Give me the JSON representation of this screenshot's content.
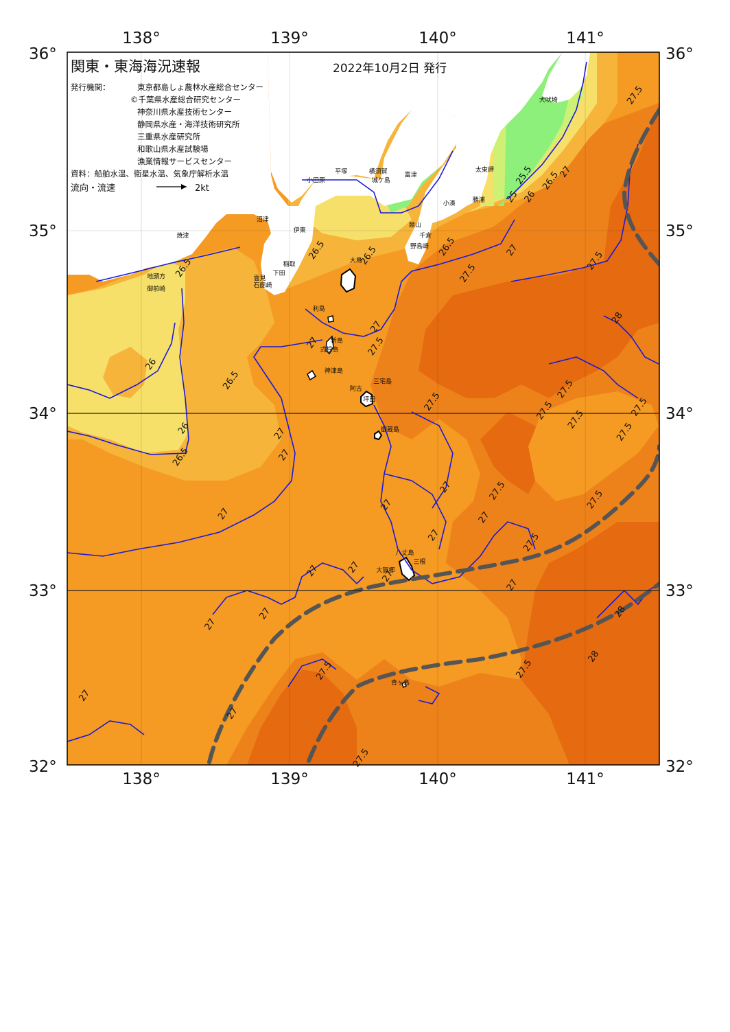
{
  "header": {
    "title": "関東・東海海況速報",
    "date": "2022年10月2日 発行",
    "issuer_label": "発行機関：",
    "issuers": [
      "東京都島しょ農林水産総合センター",
      "©千葉県水産総合研究センター",
      "神奈川県水産技術センター",
      "静岡県水産・海洋技術研究所",
      "三重県水産研究所",
      "和歌山県水産試験場",
      "漁業情報サービスセンター"
    ],
    "sources": "資料：船舶水温、衛星水温、気象庁解析水温",
    "current_label": "流向・流速",
    "scale_label": "2kt"
  },
  "axes": {
    "lon_ticks": [
      "138°",
      "139°",
      "140°",
      "141°"
    ],
    "lat_ticks_left": [
      "36°",
      "35°",
      "34°",
      "33°",
      "32°"
    ],
    "lat_ticks_right": [
      "36°",
      "35°",
      "34°",
      "33°",
      "32°"
    ],
    "lon_range": [
      137.5,
      141.5
    ],
    "lat_range": [
      32,
      36
    ]
  },
  "places": [
    {
      "name": "小田原",
      "lon": 139.18,
      "lat": 35.27
    },
    {
      "name": "平塚",
      "lon": 139.35,
      "lat": 35.32
    },
    {
      "name": "横須賀",
      "lon": 139.6,
      "lat": 35.32
    },
    {
      "name": "城ケ島",
      "lon": 139.62,
      "lat": 35.27
    },
    {
      "name": "富津",
      "lon": 139.82,
      "lat": 35.3
    },
    {
      "name": "館山",
      "lon": 139.85,
      "lat": 35.02
    },
    {
      "name": "千倉",
      "lon": 139.92,
      "lat": 34.96
    },
    {
      "name": "野島崎",
      "lon": 139.88,
      "lat": 34.9
    },
    {
      "name": "小湊",
      "lon": 140.08,
      "lat": 35.14
    },
    {
      "name": "勝浦",
      "lon": 140.28,
      "lat": 35.16
    },
    {
      "name": "太東岬",
      "lon": 140.32,
      "lat": 35.33
    },
    {
      "name": "犬吠埼",
      "lon": 140.75,
      "lat": 35.72
    },
    {
      "name": "焼津",
      "lon": 138.28,
      "lat": 34.96
    },
    {
      "name": "沼津",
      "lon": 138.82,
      "lat": 35.05
    },
    {
      "name": "伊東",
      "lon": 139.07,
      "lat": 34.99
    },
    {
      "name": "稲取",
      "lon": 139.0,
      "lat": 34.8
    },
    {
      "name": "下田",
      "lon": 138.93,
      "lat": 34.75
    },
    {
      "name": "雲見",
      "lon": 138.8,
      "lat": 34.72
    },
    {
      "name": "石廊崎",
      "lon": 138.82,
      "lat": 34.68
    },
    {
      "name": "地頭方",
      "lon": 138.1,
      "lat": 34.73
    },
    {
      "name": "御前崎",
      "lon": 138.1,
      "lat": 34.66
    },
    {
      "name": "大島",
      "lon": 139.45,
      "lat": 34.82
    },
    {
      "name": "利島",
      "lon": 139.2,
      "lat": 34.55
    },
    {
      "name": "新島",
      "lon": 139.32,
      "lat": 34.37
    },
    {
      "name": "式根島",
      "lon": 139.27,
      "lat": 34.32
    },
    {
      "name": "神津島",
      "lon": 139.3,
      "lat": 34.2
    },
    {
      "name": "三宅島",
      "lon": 139.63,
      "lat": 34.14
    },
    {
      "name": "阿古",
      "lon": 139.45,
      "lat": 34.1
    },
    {
      "name": "坪田",
      "lon": 139.54,
      "lat": 34.04
    },
    {
      "name": "御蔵島",
      "lon": 139.68,
      "lat": 33.87
    },
    {
      "name": "八丈島",
      "lon": 139.78,
      "lat": 33.18
    },
    {
      "name": "三根",
      "lon": 139.88,
      "lat": 33.13
    },
    {
      "name": "大賀郷",
      "lon": 139.65,
      "lat": 33.08
    },
    {
      "name": "青ヶ島",
      "lon": 139.75,
      "lat": 32.45
    }
  ],
  "isotherm_labels": [
    {
      "text": "26.5",
      "lon": 138.3,
      "lat": 34.78
    },
    {
      "text": "26",
      "lon": 138.08,
      "lat": 34.24
    },
    {
      "text": "26.5",
      "lon": 138.62,
      "lat": 34.15
    },
    {
      "text": "26",
      "lon": 138.3,
      "lat": 33.88
    },
    {
      "text": "26.5",
      "lon": 138.28,
      "lat": 33.72
    },
    {
      "text": "26.5",
      "lon": 139.2,
      "lat": 34.88
    },
    {
      "text": "26.5",
      "lon": 139.55,
      "lat": 34.85
    },
    {
      "text": "26.5",
      "lon": 140.08,
      "lat": 34.9
    },
    {
      "text": "27.5",
      "lon": 140.22,
      "lat": 34.75
    },
    {
      "text": "27",
      "lon": 140.52,
      "lat": 34.88
    },
    {
      "text": "26.5",
      "lon": 140.78,
      "lat": 35.27
    },
    {
      "text": "27",
      "lon": 140.88,
      "lat": 35.32
    },
    {
      "text": "25.5",
      "lon": 140.6,
      "lat": 35.3
    },
    {
      "text": "25",
      "lon": 140.52,
      "lat": 35.18
    },
    {
      "text": "26",
      "lon": 140.64,
      "lat": 35.18
    },
    {
      "text": "27.5",
      "lon": 141.35,
      "lat": 35.75
    },
    {
      "text": "27.5",
      "lon": 141.08,
      "lat": 34.82
    },
    {
      "text": "28",
      "lon": 141.23,
      "lat": 34.5
    },
    {
      "text": "27",
      "lon": 139.6,
      "lat": 34.45
    },
    {
      "text": "27.5",
      "lon": 139.6,
      "lat": 34.34
    },
    {
      "text": "27",
      "lon": 139.17,
      "lat": 34.36
    },
    {
      "text": "27",
      "lon": 138.95,
      "lat": 33.85
    },
    {
      "text": "27",
      "lon": 138.98,
      "lat": 33.73
    },
    {
      "text": "27.5",
      "lon": 139.98,
      "lat": 34.03
    },
    {
      "text": "27.5",
      "lon": 140.88,
      "lat": 34.1
    },
    {
      "text": "27.5",
      "lon": 140.74,
      "lat": 33.98
    },
    {
      "text": "27.5",
      "lon": 140.95,
      "lat": 33.93
    },
    {
      "text": "27.5",
      "lon": 141.38,
      "lat": 34.0
    },
    {
      "text": "27.5",
      "lon": 141.28,
      "lat": 33.86
    },
    {
      "text": "27.5",
      "lon": 140.42,
      "lat": 33.53
    },
    {
      "text": "27.5",
      "lon": 141.08,
      "lat": 33.48
    },
    {
      "text": "27",
      "lon": 140.07,
      "lat": 33.55
    },
    {
      "text": "27",
      "lon": 139.67,
      "lat": 33.45
    },
    {
      "text": "27",
      "lon": 140.33,
      "lat": 33.38
    },
    {
      "text": "27",
      "lon": 139.99,
      "lat": 33.28
    },
    {
      "text": "27.5",
      "lon": 140.65,
      "lat": 33.24
    },
    {
      "text": "27",
      "lon": 138.57,
      "lat": 33.4
    },
    {
      "text": "27",
      "lon": 139.17,
      "lat": 33.08
    },
    {
      "text": "27",
      "lon": 139.45,
      "lat": 33.1
    },
    {
      "text": "27",
      "lon": 139.68,
      "lat": 33.05
    },
    {
      "text": "27",
      "lon": 140.52,
      "lat": 33.0
    },
    {
      "text": "28",
      "lon": 141.25,
      "lat": 32.85
    },
    {
      "text": "27",
      "lon": 138.48,
      "lat": 32.78
    },
    {
      "text": "27",
      "lon": 138.85,
      "lat": 32.84
    },
    {
      "text": "28",
      "lon": 141.07,
      "lat": 32.6
    },
    {
      "text": "27.5",
      "lon": 139.25,
      "lat": 32.52
    },
    {
      "text": "27.5",
      "lon": 140.6,
      "lat": 32.53
    },
    {
      "text": "27",
      "lon": 137.63,
      "lat": 32.38
    },
    {
      "text": "27",
      "lon": 138.63,
      "lat": 32.28
    },
    {
      "text": "27.5",
      "lon": 139.5,
      "lat": 32.03
    }
  ],
  "colors": {
    "land": "#ffffff",
    "sst_25": "#8cf07a",
    "sst_25_5": "#cdf075",
    "sst_26": "#f6e06a",
    "sst_26_5": "#f6b43a",
    "sst_27": "#f59a22",
    "sst_27_5": "#ee821a",
    "sst_28": "#e56a10",
    "current_line": "#1a1ad8",
    "kuroshio_axis": "#555555",
    "grid": "#222222"
  }
}
